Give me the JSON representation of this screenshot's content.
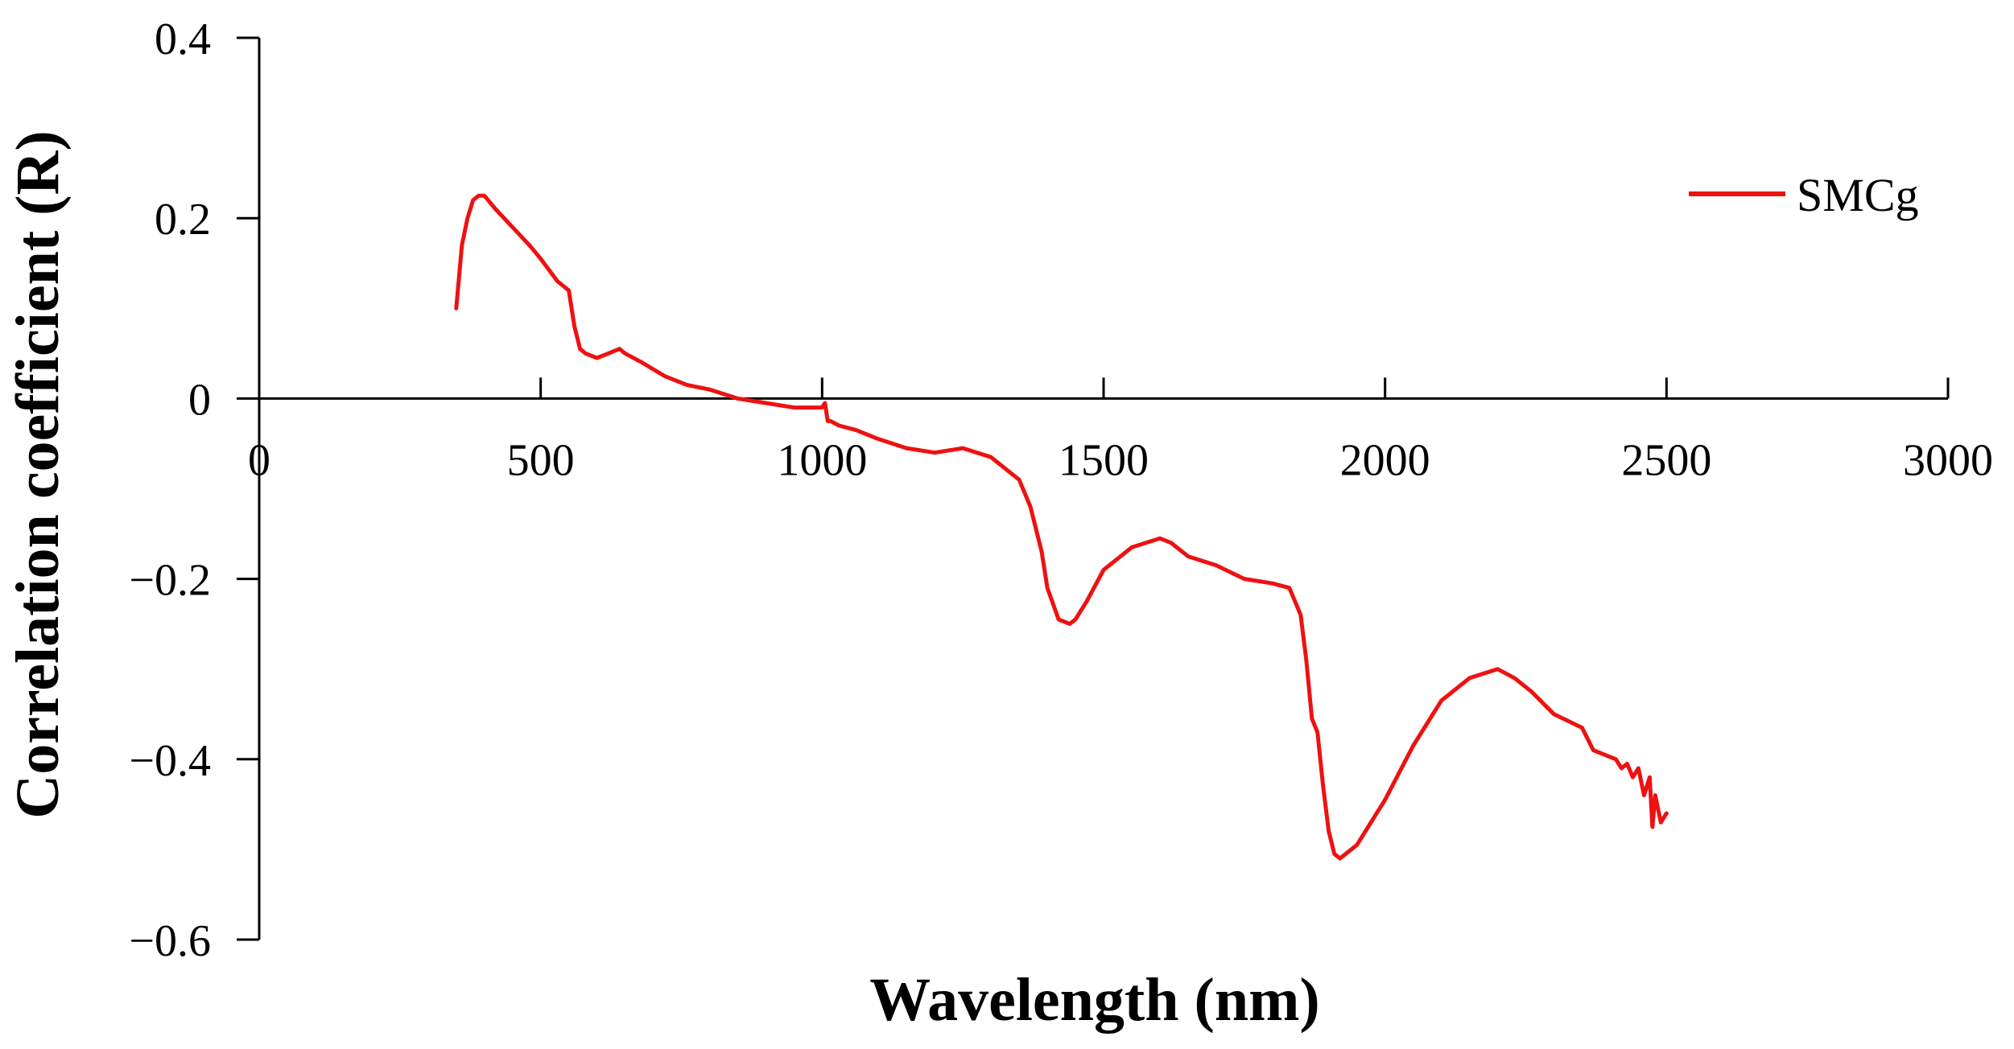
{
  "chart_data": {
    "type": "line",
    "title": "",
    "xlabel": "Wavelength (nm)",
    "ylabel": "Correlation coefficient (R)",
    "xlim": [
      0,
      3000
    ],
    "ylim": [
      -0.6,
      0.4
    ],
    "x_ticks": [
      0,
      500,
      1000,
      1500,
      2000,
      2500,
      3000
    ],
    "x_tick_labels": [
      "0",
      "500",
      "1000",
      "1500",
      "2000",
      "2500",
      "3000"
    ],
    "y_ticks": [
      0.4,
      0.2,
      0,
      -0.2,
      -0.4,
      -0.6
    ],
    "y_tick_labels": [
      "0.4",
      "0.2",
      "0",
      "−0.2",
      "−0.4",
      "−0.6"
    ],
    "grid": false,
    "legend_position": "top-right",
    "series": [
      {
        "name": "SMCg",
        "color": "#ee1111",
        "x": [
          350,
          360,
          370,
          380,
          390,
          400,
          420,
          450,
          480,
          500,
          530,
          550,
          560,
          570,
          580,
          600,
          620,
          640,
          650,
          680,
          720,
          760,
          800,
          850,
          900,
          950,
          1000,
          1005,
          1010,
          1015,
          1030,
          1060,
          1100,
          1150,
          1200,
          1250,
          1300,
          1350,
          1370,
          1390,
          1400,
          1420,
          1440,
          1450,
          1470,
          1500,
          1550,
          1600,
          1620,
          1650,
          1700,
          1750,
          1800,
          1830,
          1850,
          1860,
          1870,
          1880,
          1890,
          1900,
          1910,
          1920,
          1930,
          1950,
          2000,
          2050,
          2100,
          2150,
          2200,
          2230,
          2260,
          2300,
          2350,
          2370,
          2390,
          2410,
          2420,
          2430,
          2440,
          2450,
          2460,
          2470,
          2475,
          2480,
          2490,
          2500
        ],
        "values": [
          0.1,
          0.17,
          0.2,
          0.22,
          0.225,
          0.225,
          0.21,
          0.19,
          0.17,
          0.155,
          0.13,
          0.12,
          0.08,
          0.055,
          0.05,
          0.045,
          0.05,
          0.055,
          0.05,
          0.04,
          0.025,
          0.015,
          0.01,
          0.0,
          -0.005,
          -0.01,
          -0.01,
          -0.005,
          -0.025,
          -0.025,
          -0.03,
          -0.035,
          -0.045,
          -0.055,
          -0.06,
          -0.055,
          -0.065,
          -0.09,
          -0.12,
          -0.17,
          -0.21,
          -0.245,
          -0.25,
          -0.245,
          -0.225,
          -0.19,
          -0.165,
          -0.155,
          -0.16,
          -0.175,
          -0.185,
          -0.2,
          -0.205,
          -0.21,
          -0.24,
          -0.29,
          -0.355,
          -0.37,
          -0.43,
          -0.48,
          -0.505,
          -0.51,
          -0.505,
          -0.495,
          -0.445,
          -0.385,
          -0.335,
          -0.31,
          -0.3,
          -0.31,
          -0.325,
          -0.35,
          -0.365,
          -0.39,
          -0.395,
          -0.4,
          -0.41,
          -0.405,
          -0.42,
          -0.41,
          -0.44,
          -0.42,
          -0.475,
          -0.44,
          -0.47,
          -0.46
        ]
      }
    ]
  }
}
